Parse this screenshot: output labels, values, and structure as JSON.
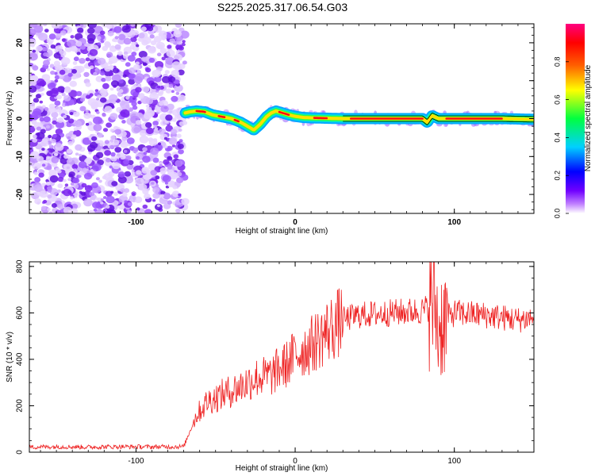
{
  "title": "S225.2025.317.06.54.G03",
  "chart_data": [
    {
      "type": "heatmap",
      "name": "spectrogram",
      "xlabel": "Height of straight line (km)",
      "ylabel": "Frequency (Hz)",
      "xlim": [
        -167,
        150
      ],
      "ylim": [
        -25,
        25
      ],
      "xticks": [
        -100,
        0,
        100
      ],
      "yticks": [
        -20,
        -10,
        0,
        10,
        20
      ],
      "colorbar": {
        "label": "Normalized spectral amplitude",
        "range": [
          0,
          1
        ],
        "ticks": [
          "0.0",
          "0.2",
          "0.4",
          "0.6",
          "0.8"
        ],
        "colors": [
          "#ffffff",
          "#c080ff",
          "#7000ff",
          "#0000ff",
          "#00d0ff",
          "#00ff40",
          "#ffff00",
          "#ff6000",
          "#ff0000",
          "#ff0080"
        ]
      },
      "noise_region_x": [
        -167,
        -69
      ],
      "signal_ridge": {
        "x": [
          -69,
          -66,
          -62,
          -57,
          -52,
          -46,
          -40,
          -34,
          -30,
          -26,
          -22,
          -18,
          -15,
          -12,
          -8,
          -4,
          0,
          5,
          10,
          20,
          30,
          40,
          60,
          80,
          83,
          86,
          90,
          95,
          110,
          130,
          150
        ],
        "y": [
          1.5,
          1.8,
          2.0,
          1.8,
          1.0,
          0.5,
          0.0,
          -1.0,
          -2.0,
          -3.0,
          -1.5,
          0.5,
          1.5,
          2.0,
          1.5,
          1.0,
          0.6,
          0.3,
          0.2,
          0.1,
          0.0,
          0.0,
          0.0,
          0.0,
          -1.0,
          0.8,
          0.0,
          0.0,
          0.0,
          0.0,
          -0.2
        ]
      }
    },
    {
      "type": "line",
      "name": "snr",
      "xlabel": "Height of straight line (km)",
      "ylabel": "SNR (10 * v/v)",
      "xlim": [
        -167,
        150
      ],
      "ylim": [
        0,
        820
      ],
      "xticks": [
        -100,
        0,
        100
      ],
      "yticks": [
        0,
        200,
        400,
        600,
        800
      ],
      "color": "#ee2222",
      "series": [
        {
          "name": "SNR",
          "x": [
            -167,
            -150,
            -130,
            -110,
            -90,
            -70,
            -62,
            -55,
            -45,
            -35,
            -25,
            -15,
            -10,
            -5,
            0,
            10,
            20,
            30,
            40,
            60,
            80,
            88,
            90,
            92,
            100,
            120,
            140,
            150
          ],
          "y": [
            22,
            24,
            22,
            24,
            23,
            24,
            160,
            220,
            250,
            280,
            320,
            330,
            360,
            380,
            420,
            460,
            520,
            570,
            590,
            600,
            610,
            640,
            520,
            560,
            600,
            590,
            570,
            580
          ]
        }
      ]
    }
  ]
}
